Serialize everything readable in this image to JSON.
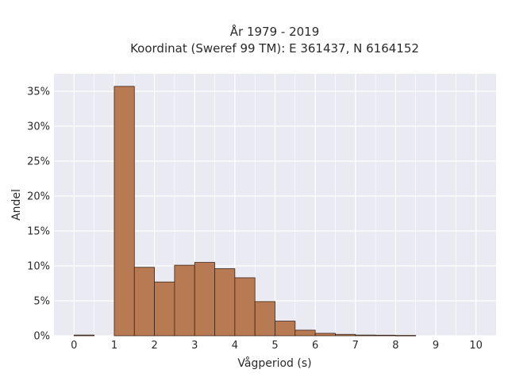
{
  "chart_data": {
    "type": "bar",
    "title_line1": "År 1979 - 2019",
    "title_line2": "Koordinat (Sweref 99 TM): E 361437, N 6164152",
    "xlabel": "Vågperiod (s)",
    "ylabel": "Andel",
    "bin_width": 0.5,
    "bins_start": [
      0,
      0.5,
      1,
      1.5,
      2,
      2.5,
      3,
      3.5,
      4,
      4.5,
      5,
      5.5,
      6,
      6.5,
      7,
      7.5,
      8,
      8.5,
      9,
      9.5
    ],
    "values": [
      0.1,
      0,
      35.7,
      9.8,
      7.7,
      10.1,
      10.5,
      9.6,
      8.3,
      4.9,
      2.1,
      0.8,
      0.35,
      0.2,
      0.1,
      0.08,
      0.05,
      0,
      0,
      0
    ],
    "xlim": [
      -0.5,
      10.5
    ],
    "ylim": [
      0,
      37.5
    ],
    "x_ticks": [
      "0",
      "1",
      "2",
      "3",
      "4",
      "5",
      "6",
      "7",
      "8",
      "9",
      "10"
    ],
    "y_ticks": [
      "0%",
      "5%",
      "10%",
      "15%",
      "20%",
      "25%",
      "30%",
      "35%"
    ],
    "grid": true,
    "colors": {
      "bar_fill": "#b87a53",
      "bar_edge": "#3d2518",
      "plot_bg": "#eaeaf2",
      "grid": "#ffffff"
    }
  }
}
